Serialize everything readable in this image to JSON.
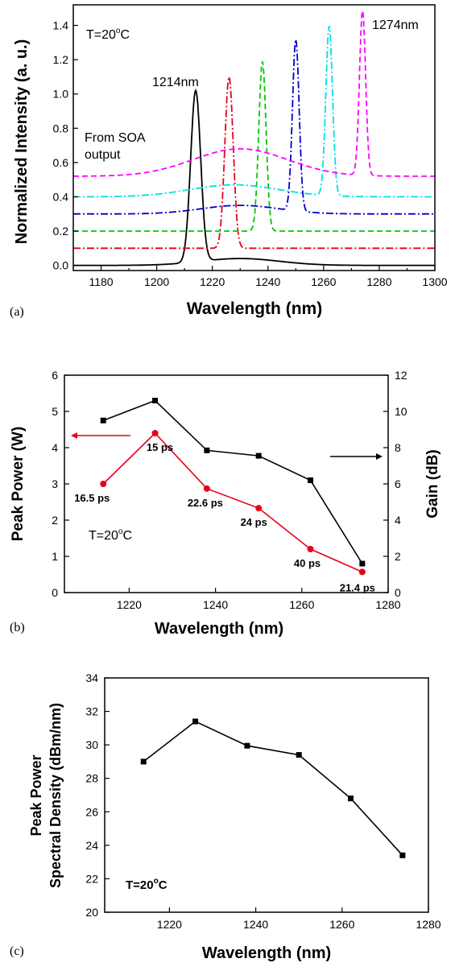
{
  "chart_data": [
    {
      "panel": "(a)",
      "type": "line",
      "xlabel": "Wavelength (nm)",
      "ylabel": "Normalized Intensity (a. u.)",
      "xlim": [
        1170,
        1300
      ],
      "ylim": [
        -0.03,
        1.52
      ],
      "xticks": [
        1180,
        1200,
        1220,
        1240,
        1260,
        1280,
        1300
      ],
      "yticks": [
        0.0,
        0.2,
        0.4,
        0.6,
        0.8,
        1.0,
        1.2,
        1.4
      ],
      "annotations": {
        "temperature": "T=20°C",
        "temperature_prefix": "T=20",
        "temperature_sup": "o",
        "temperature_suffix": "C",
        "left_peak": "1214nm",
        "right_peak": "1274nm",
        "soa_line1": "From SOA",
        "soa_line2": "output"
      },
      "series": [
        {
          "color": "#000000",
          "dash": "solid",
          "baseline": 0.0,
          "peak_wl": 1214,
          "peak": 1.0,
          "hump": 0.04,
          "hump_center": 1230,
          "hump_width": 14,
          "peak_width": 1.8
        },
        {
          "color": "#e8001a",
          "dash": "dashdot",
          "baseline": 0.1,
          "peak_wl": 1226,
          "peak": 1.1,
          "hump": 0.0,
          "hump_center": 1230,
          "hump_width": 14,
          "peak_width": 1.5
        },
        {
          "color": "#00c800",
          "dash": "dash",
          "baseline": 0.2,
          "peak_wl": 1238,
          "peak": 1.19,
          "hump": 0.0,
          "hump_center": 1230,
          "hump_width": 14,
          "peak_width": 1.3
        },
        {
          "color": "#0000c8",
          "dash": "dashdot",
          "baseline": 0.3,
          "peak_wl": 1250,
          "peak": 1.3,
          "hump": 0.05,
          "hump_center": 1230,
          "hump_width": 14,
          "peak_width": 1.2
        },
        {
          "color": "#00e0e0",
          "dash": "dashdot",
          "baseline": 0.4,
          "peak_wl": 1262,
          "peak": 1.39,
          "hump": 0.07,
          "hump_center": 1228,
          "hump_width": 16,
          "peak_width": 1.2
        },
        {
          "color": "#ff00ff",
          "dash": "dash",
          "baseline": 0.52,
          "peak_wl": 1274,
          "peak": 1.48,
          "hump": 0.16,
          "hump_center": 1230,
          "hump_width": 17,
          "peak_width": 1.1
        }
      ]
    },
    {
      "panel": "(b)",
      "type": "line",
      "xlabel": "Wavelength (nm)",
      "ylabel": "Peak Power (W)",
      "y2label": "Gain (dB)",
      "xlim": [
        1205,
        1280
      ],
      "ylim": [
        0,
        6
      ],
      "y2lim": [
        0,
        12
      ],
      "xticks": [
        1220,
        1240,
        1260,
        1280
      ],
      "yticks": [
        0,
        1,
        2,
        3,
        4,
        5,
        6
      ],
      "y2ticks": [
        0,
        2,
        4,
        6,
        8,
        10,
        12
      ],
      "temperature_prefix": "T=20",
      "temperature_sup": "o",
      "temperature_suffix": "C",
      "series": [
        {
          "axis": "left",
          "color": "#e8001a",
          "marker": "circle",
          "x": [
            1214,
            1226,
            1238,
            1250,
            1262,
            1274
          ],
          "y": [
            3.0,
            4.4,
            2.87,
            2.33,
            1.2,
            0.57
          ],
          "labels": [
            "16.5 ps",
            "15 ps",
            "22.6 ps",
            "24 ps",
            "40 ps",
            "21.4 ps"
          ]
        },
        {
          "axis": "right",
          "color": "#000000",
          "marker": "square",
          "x": [
            1214,
            1226,
            1238,
            1250,
            1262,
            1274
          ],
          "y": [
            9.5,
            10.6,
            7.85,
            7.55,
            6.2,
            1.6
          ]
        }
      ]
    },
    {
      "panel": "(c)",
      "type": "line",
      "xlabel": "Wavelength (nm)",
      "ylabel_line1": "Peak Power",
      "ylabel_line2": "Spectral Density (dBm/nm)",
      "xlim": [
        1205,
        1280
      ],
      "ylim": [
        20,
        34
      ],
      "xticks": [
        1220,
        1240,
        1260,
        1280
      ],
      "yticks": [
        20,
        22,
        24,
        26,
        28,
        30,
        32,
        34
      ],
      "temperature_prefix": "T=20",
      "temperature_sup": "o",
      "temperature_suffix": "C",
      "series": [
        {
          "color": "#000000",
          "marker": "square",
          "x": [
            1214,
            1226,
            1238,
            1250,
            1262,
            1274
          ],
          "y": [
            29.0,
            31.4,
            29.95,
            29.4,
            26.8,
            23.4
          ]
        }
      ]
    }
  ]
}
